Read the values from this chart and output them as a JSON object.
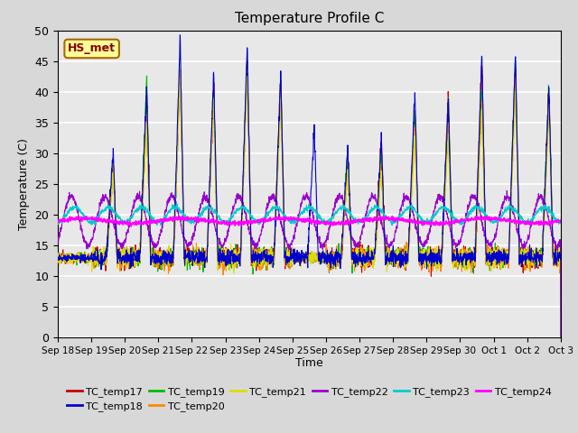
{
  "title": "Temperature Profile C",
  "ylabel": "Temperature (C)",
  "xlabel": "Time",
  "annotation": "HS_met",
  "ylim": [
    0,
    50
  ],
  "x_tick_labels": [
    "Sep 18",
    "Sep 19",
    "Sep 20",
    "Sep 21",
    "Sep 22",
    "Sep 23",
    "Sep 24",
    "Sep 25",
    "Sep 26",
    "Sep 27",
    "Sep 28",
    "Sep 29",
    "Sep 30",
    "Oct 1",
    "Oct 2",
    "Oct 3"
  ],
  "series_colors": {
    "TC_temp17": "#cc0000",
    "TC_temp18": "#0000cc",
    "TC_temp19": "#00bb00",
    "TC_temp20": "#ff8800",
    "TC_temp21": "#dddd00",
    "TC_temp22": "#9900cc",
    "TC_temp23": "#00cccc",
    "TC_temp24": "#ff00ff"
  },
  "background_color": "#e8e8e8",
  "grid_color": "#ffffff",
  "annotation_bg": "#ffff99",
  "annotation_border": "#aa6600",
  "fig_bg": "#d8d8d8"
}
